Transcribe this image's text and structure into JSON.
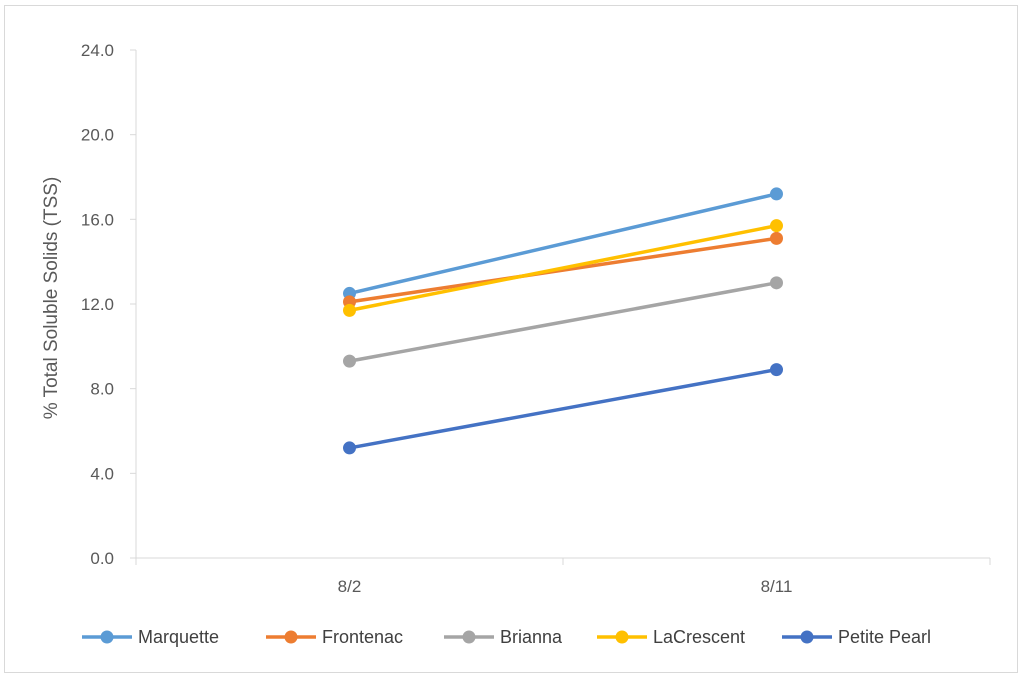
{
  "chart_data": {
    "type": "line",
    "categories": [
      "8/2",
      "8/11"
    ],
    "ylabel": "% Total Soluble Solids (TSS)",
    "xlabel": "",
    "ylim": [
      0,
      24
    ],
    "yticks": [
      "0.0",
      "4.0",
      "8.0",
      "12.0",
      "16.0",
      "20.0",
      "24.0"
    ],
    "grid": false,
    "legend_position": "bottom",
    "series": [
      {
        "name": "Marquette",
        "color": "#5b9bd5",
        "values": [
          12.5,
          17.2
        ]
      },
      {
        "name": "Frontenac",
        "color": "#ed7d31",
        "values": [
          12.1,
          15.1
        ]
      },
      {
        "name": "Brianna",
        "color": "#a5a5a5",
        "values": [
          9.3,
          13.0
        ]
      },
      {
        "name": "LaCrescent",
        "color": "#ffc000",
        "values": [
          11.7,
          15.7
        ]
      },
      {
        "name": "Petite Pearl",
        "color": "#4472c4",
        "values": [
          5.2,
          8.9
        ]
      }
    ]
  }
}
